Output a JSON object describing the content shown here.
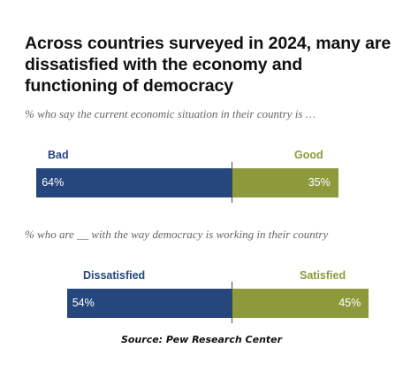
{
  "title": "Across countries surveyed in 2024, many are dissatisfied with the economy and functioning of democracy",
  "source": "Source: Pew Research Center",
  "colors": {
    "negative": "#26467e",
    "positive": "#8c9a3c",
    "text": "#111111",
    "subtitle": "#666666"
  },
  "chart_data": [
    {
      "type": "bar",
      "orientation": "horizontal-stacked",
      "title": "% who say the current economic situation in their country is …",
      "series": [
        {
          "name": "Bad",
          "values": [
            64
          ]
        },
        {
          "name": "Good",
          "values": [
            35
          ]
        }
      ],
      "value_labels": [
        "64%",
        "35%"
      ]
    },
    {
      "type": "bar",
      "orientation": "horizontal-stacked",
      "title": "% who are __ with the way democracy is working in their country",
      "series": [
        {
          "name": "Dissatisfied",
          "values": [
            54
          ]
        },
        {
          "name": "Satisfied",
          "values": [
            45
          ]
        }
      ],
      "value_labels": [
        "54%",
        "45%"
      ]
    }
  ]
}
